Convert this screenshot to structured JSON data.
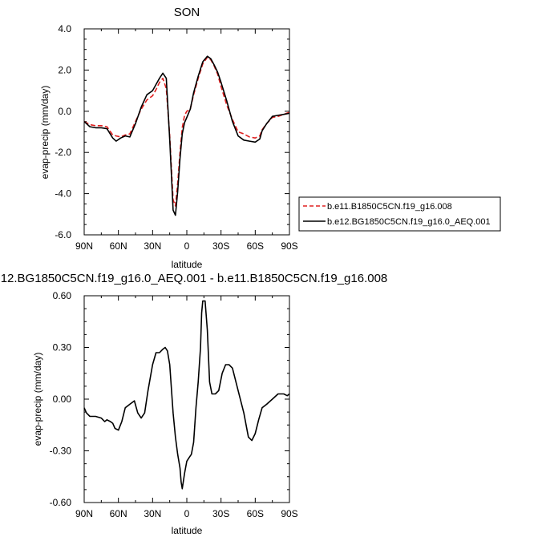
{
  "chart_data": [
    {
      "type": "line",
      "title": "SON",
      "xlabel": "latitude",
      "ylabel": "evap-precip (mm/day)",
      "x_ticks": [
        "90N",
        "60N",
        "30N",
        "0",
        "30S",
        "60S",
        "90S"
      ],
      "y_ticks": [
        "4.0",
        "2.0",
        "0.0",
        "-2.0",
        "-4.0",
        "-6.0"
      ],
      "xlim": [
        90,
        -90
      ],
      "ylim": [
        -6,
        4
      ],
      "legend_placement": "right",
      "series": [
        {
          "name": "b.e11.B1850C5CN.f19_g16.008",
          "color": "#e02020",
          "dash": "dashed",
          "x": [
            90,
            85,
            80,
            75,
            70,
            65,
            62,
            58,
            54,
            50,
            45,
            40,
            35,
            30,
            27,
            24,
            21,
            18,
            15,
            12,
            10,
            8,
            6,
            4,
            2,
            0,
            -3,
            -6,
            -10,
            -14,
            -18,
            -21,
            -24,
            -27,
            -30,
            -35,
            -40,
            -45,
            -50,
            -55,
            -60,
            -64,
            -66,
            -70,
            -75,
            -80,
            -85,
            -90
          ],
          "y": [
            -0.5,
            -0.65,
            -0.7,
            -0.7,
            -0.75,
            -1.15,
            -1.2,
            -1.25,
            -1.15,
            -1.1,
            -0.5,
            0.1,
            0.55,
            0.75,
            1.05,
            1.4,
            1.6,
            1.1,
            -1.2,
            -4.3,
            -4.6,
            -3.5,
            -2.0,
            -0.8,
            -0.2,
            0.0,
            0.1,
            0.8,
            1.6,
            2.3,
            2.62,
            2.5,
            2.2,
            1.8,
            1.2,
            0.3,
            -0.4,
            -1.0,
            -1.1,
            -1.25,
            -1.3,
            -1.2,
            -0.9,
            -0.6,
            -0.3,
            -0.25,
            -0.15,
            -0.05
          ]
        },
        {
          "name": "b.e12.BG1850C5CN.f19_g16.0_AEQ.001",
          "color": "#000000",
          "dash": "solid",
          "x": [
            90,
            85,
            80,
            75,
            70,
            65,
            62,
            58,
            54,
            50,
            45,
            40,
            35,
            30,
            27,
            24,
            21,
            18,
            15,
            12,
            10,
            8,
            6,
            4,
            2,
            0,
            -3,
            -6,
            -10,
            -14,
            -18,
            -21,
            -24,
            -27,
            -30,
            -35,
            -40,
            -45,
            -50,
            -55,
            -60,
            -64,
            -66,
            -70,
            -75,
            -80,
            -85,
            -90
          ],
          "y": [
            -0.5,
            -0.75,
            -0.8,
            -0.8,
            -0.85,
            -1.3,
            -1.45,
            -1.3,
            -1.2,
            -1.25,
            -0.6,
            0.2,
            0.8,
            1.0,
            1.3,
            1.6,
            1.85,
            1.6,
            -1.4,
            -4.8,
            -5.05,
            -3.9,
            -2.3,
            -1.1,
            -0.55,
            -0.3,
            0.1,
            0.9,
            1.7,
            2.4,
            2.67,
            2.55,
            2.25,
            1.9,
            1.4,
            0.5,
            -0.5,
            -1.2,
            -1.4,
            -1.45,
            -1.5,
            -1.35,
            -0.95,
            -0.6,
            -0.25,
            -0.2,
            -0.15,
            -0.1
          ]
        }
      ]
    },
    {
      "type": "line",
      "title": "12.BG1850C5CN.f19_g16.0_AEQ.001 - b.e11.B1850C5CN.f19_g16.008",
      "xlabel": "latitude",
      "ylabel": "evap-precip (mm/day)",
      "x_ticks": [
        "90N",
        "60N",
        "30N",
        "0",
        "30S",
        "60S",
        "90S"
      ],
      "y_ticks": [
        "0.60",
        "0.30",
        "0.00",
        "-0.30",
        "-0.60"
      ],
      "xlim": [
        90,
        -90
      ],
      "ylim": [
        -0.6,
        0.6
      ],
      "series": [
        {
          "color": "#000000",
          "x": [
            90,
            88,
            85,
            80,
            75,
            72,
            70,
            67,
            65,
            63,
            60,
            57,
            54,
            50,
            46,
            43,
            40,
            37,
            34,
            30,
            27,
            24,
            21,
            19,
            17,
            15,
            12,
            10,
            8,
            6,
            5,
            4,
            2,
            0,
            -2,
            -4,
            -6,
            -8,
            -10,
            -12,
            -13,
            -14,
            -16,
            -18,
            -20,
            -22,
            -25,
            -28,
            -31,
            -34,
            -37,
            -40,
            -45,
            -50,
            -54,
            -57,
            -60,
            -63,
            -66,
            -70,
            -75,
            -80,
            -85,
            -88,
            -90
          ],
          "y": [
            -0.05,
            -0.08,
            -0.1,
            -0.1,
            -0.11,
            -0.13,
            -0.12,
            -0.13,
            -0.14,
            -0.17,
            -0.18,
            -0.13,
            -0.05,
            -0.03,
            -0.01,
            -0.08,
            -0.11,
            -0.08,
            0.05,
            0.2,
            0.27,
            0.27,
            0.29,
            0.3,
            0.28,
            0.2,
            -0.08,
            -0.22,
            -0.32,
            -0.4,
            -0.48,
            -0.52,
            -0.43,
            -0.36,
            -0.34,
            -0.32,
            -0.25,
            -0.05,
            0.1,
            0.3,
            0.5,
            0.57,
            0.57,
            0.4,
            0.1,
            0.03,
            0.03,
            0.05,
            0.15,
            0.2,
            0.2,
            0.18,
            0.05,
            -0.08,
            -0.22,
            -0.24,
            -0.2,
            -0.12,
            -0.05,
            -0.03,
            0.0,
            0.03,
            0.03,
            0.02,
            0.03
          ]
        }
      ]
    }
  ]
}
